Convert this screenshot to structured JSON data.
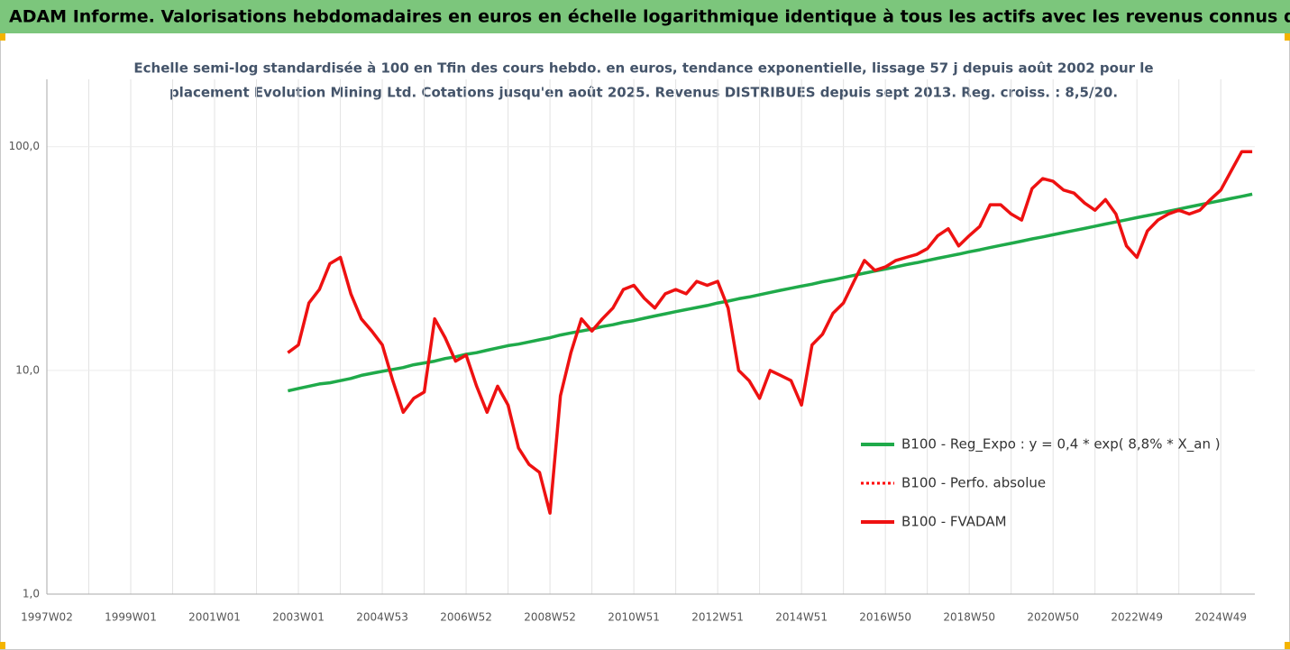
{
  "chart_data": {
    "type": "line",
    "title": "ADAM Informe. Valorisations hebdomadaires en euros en échelle logarithmique identique à tous les actifs avec les revenus connus distribués",
    "subtitle": [
      "Echelle semi-log standardisée à 100 en Tfin des cours hebdo. en euros, tendance exponentielle, lissage 57 j depuis août 2002 pour le",
      "placement Evolution Mining Ltd. Cotations jusqu'en août 2025. Revenus DISTRIBUES depuis sept 2013. Reg. croiss. : 8,5/20."
    ],
    "categories": [
      "1997W02",
      null,
      null,
      null,
      null,
      null,
      null,
      null,
      "1999W01",
      null,
      null,
      null,
      null,
      null,
      null,
      null,
      "2001W01",
      null,
      null,
      null,
      null,
      null,
      null,
      null,
      "2003W01",
      null,
      null,
      null,
      null,
      null,
      null,
      null,
      "2004W53",
      null,
      null,
      null,
      null,
      null,
      null,
      null,
      "2006W52",
      null,
      null,
      null,
      null,
      null,
      null,
      null,
      "2008W52",
      null,
      null,
      null,
      null,
      null,
      null,
      null,
      "2010W51",
      null,
      null,
      null,
      null,
      null,
      null,
      null,
      "2012W51",
      null,
      null,
      null,
      null,
      null,
      null,
      null,
      "2014W51",
      null,
      null,
      null,
      null,
      null,
      null,
      null,
      "2016W50",
      null,
      null,
      null,
      null,
      null,
      null,
      null,
      "2018W50",
      null,
      null,
      null,
      null,
      null,
      null,
      null,
      "2020W50",
      null,
      null,
      null,
      null,
      null,
      null,
      null,
      "2022W49",
      null,
      null,
      null,
      null,
      null,
      null,
      null,
      "2024W49",
      null,
      null,
      null
    ],
    "log_scale": true,
    "ylim": [
      1,
      200
    ],
    "yticks": [
      {
        "value": 1,
        "label": "1,0"
      },
      {
        "value": 10,
        "label": "10,0"
      },
      {
        "value": 100,
        "label": "100,0"
      }
    ],
    "grid": true,
    "legend": "right",
    "series": [
      {
        "name": "B100 - Reg_Expo : y = 0,4 * exp( 8,8% *  X_an )",
        "color": "#1faa4a",
        "style": "solid",
        "values": [
          null,
          null,
          null,
          null,
          null,
          null,
          null,
          null,
          null,
          null,
          null,
          null,
          null,
          null,
          null,
          null,
          null,
          null,
          null,
          null,
          null,
          null,
          null,
          8.1,
          8.3,
          8.5,
          8.7,
          8.8,
          9.0,
          9.2,
          9.5,
          9.7,
          9.9,
          10.1,
          10.3,
          10.6,
          10.8,
          11.0,
          11.3,
          11.5,
          11.8,
          12.0,
          12.3,
          12.6,
          12.9,
          13.1,
          13.4,
          13.7,
          14.0,
          14.4,
          14.7,
          15.0,
          15.3,
          15.7,
          16.0,
          16.4,
          16.7,
          17.1,
          17.5,
          17.9,
          18.3,
          18.7,
          19.1,
          19.5,
          20.0,
          20.4,
          20.9,
          21.3,
          21.8,
          22.3,
          22.8,
          23.3,
          23.8,
          24.3,
          24.9,
          25.4,
          26.0,
          26.6,
          27.2,
          27.8,
          28.4,
          29.0,
          29.7,
          30.3,
          31.0,
          31.7,
          32.4,
          33.1,
          33.9,
          34.6,
          35.4,
          36.2,
          37.0,
          37.8,
          38.7,
          39.5,
          40.4,
          41.3,
          42.2,
          43.1,
          44.1,
          45.1,
          46.1,
          47.1,
          48.2,
          49.2,
          50.3,
          51.4,
          52.6,
          53.8,
          55.0,
          56.2,
          57.4,
          58.7,
          60.0,
          61.3
        ]
      },
      {
        "name": "B100 - Perfo. absolue",
        "color": "#ff0000",
        "style": "dotted",
        "values": [
          null,
          null,
          null,
          null,
          null,
          null,
          null,
          null,
          null,
          null,
          null,
          null,
          null,
          null,
          null,
          null,
          null,
          null,
          null,
          null,
          null,
          null,
          null,
          12,
          13,
          20,
          23,
          30,
          32,
          22,
          17,
          15,
          13,
          9,
          6.5,
          7.5,
          8,
          17,
          14,
          11,
          11.7,
          8.5,
          6.5,
          8.5,
          7,
          4.5,
          3.8,
          3.5,
          2.3,
          7.7,
          12,
          17,
          15,
          17,
          19,
          23,
          24,
          21,
          19,
          22,
          23,
          22,
          25,
          24,
          25,
          19,
          10,
          9,
          7.5,
          10,
          9.5,
          9,
          7,
          13,
          14.5,
          18,
          20,
          25,
          31,
          28,
          29,
          31,
          32,
          33,
          35,
          40,
          43,
          36,
          40,
          44,
          55,
          55,
          50,
          47,
          65,
          72,
          70,
          64,
          62,
          56,
          52,
          58,
          50,
          36,
          32,
          42,
          47,
          50,
          52,
          50,
          52,
          58,
          64,
          78,
          95,
          95
        ]
      },
      {
        "name": "B100 - FVADAM",
        "color": "#ee1111",
        "style": "solid",
        "values": [
          null,
          null,
          null,
          null,
          null,
          null,
          null,
          null,
          null,
          null,
          null,
          null,
          null,
          null,
          null,
          null,
          null,
          null,
          null,
          null,
          null,
          null,
          null,
          12,
          13,
          20,
          23,
          30,
          32,
          22,
          17,
          15,
          13,
          9,
          6.5,
          7.5,
          8,
          17,
          14,
          11,
          11.7,
          8.5,
          6.5,
          8.5,
          7,
          4.5,
          3.8,
          3.5,
          2.3,
          7.7,
          12,
          17,
          15,
          17,
          19,
          23,
          24,
          21,
          19,
          22,
          23,
          22,
          25,
          24,
          25,
          19,
          10,
          9,
          7.5,
          10,
          9.5,
          9,
          7,
          13,
          14.5,
          18,
          20,
          25,
          31,
          28,
          29,
          31,
          32,
          33,
          35,
          40,
          43,
          36,
          40,
          44,
          55,
          55,
          50,
          47,
          65,
          72,
          70,
          64,
          62,
          56,
          52,
          58,
          50,
          36,
          32,
          42,
          47,
          50,
          52,
          50,
          52,
          58,
          64,
          78,
          95,
          95
        ]
      }
    ]
  }
}
